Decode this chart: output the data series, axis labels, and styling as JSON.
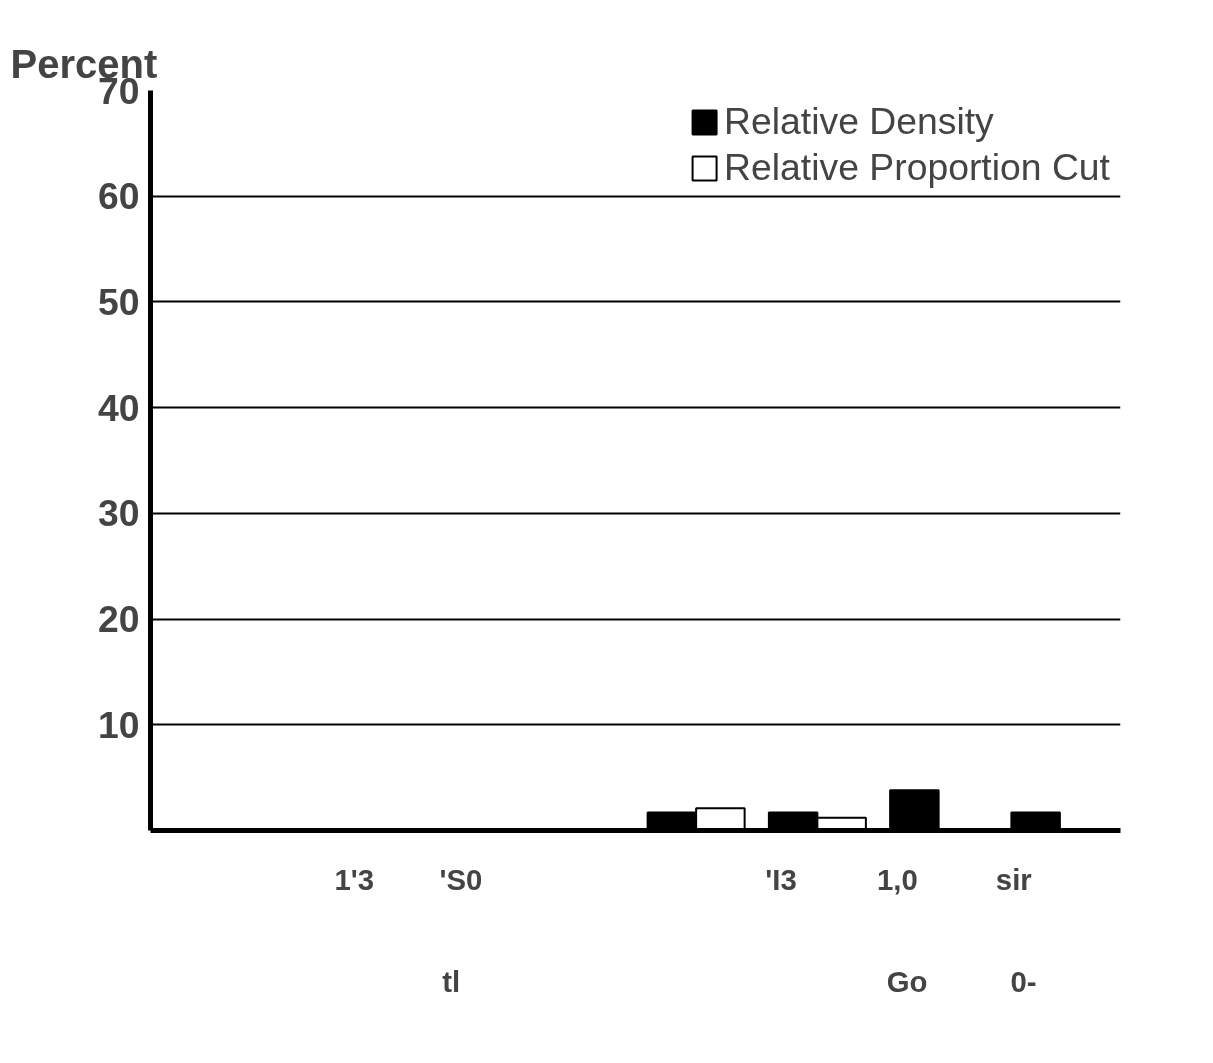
{
  "chart_data": {
    "type": "bar",
    "ylabel": "Percent",
    "categories": [
      null,
      null,
      null,
      null,
      null,
      null,
      null,
      null
    ],
    "series": [
      {
        "name": "Relative Density",
        "color": "#000000",
        "values": [
          null,
          null,
          null,
          null,
          1.7,
          1.7,
          3.8,
          1.7
        ]
      },
      {
        "name": "Relative Proportion Cut",
        "color": "#ffffff",
        "values": [
          null,
          null,
          null,
          null,
          2.1,
          1.2,
          null,
          null
        ]
      }
    ],
    "ylim": [
      0,
      70
    ],
    "yticks": [
      10,
      20,
      30,
      40,
      50,
      60,
      70
    ],
    "grid": "y",
    "legend": "top right",
    "annotations": [
      "1'3",
      "'S0",
      "'I3",
      "1,0",
      "sir",
      "tl",
      "Go",
      "0-"
    ]
  }
}
